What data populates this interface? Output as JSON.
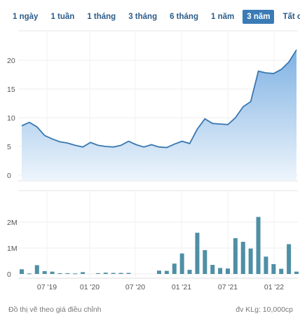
{
  "range_buttons": [
    {
      "label": "1 ngày",
      "active": false
    },
    {
      "label": "1 tuần",
      "active": false
    },
    {
      "label": "1 tháng",
      "active": false
    },
    {
      "label": "3 tháng",
      "active": false
    },
    {
      "label": "6 tháng",
      "active": false
    },
    {
      "label": "1 năm",
      "active": false
    },
    {
      "label": "3 năm",
      "active": true
    },
    {
      "label": "Tất cả",
      "active": false
    }
  ],
  "footer": {
    "note": "Đồ thị vẽ theo giá điều chỉnh",
    "unit": "đv KLg: 10,000cp"
  },
  "colors": {
    "line": "#3a78b0",
    "area_top": "#7fb2e3",
    "area_bottom": "#eef5fc",
    "bar": "#4f8fa6",
    "active_button": "#3a7bb6"
  },
  "chart_data": [
    {
      "type": "area",
      "name": "price",
      "y_ticks": [
        "0",
        "5",
        "10",
        "15",
        "20"
      ],
      "ylim": [
        0,
        23
      ],
      "x_ticks": [
        "07 '19",
        "01 '20",
        "07 '20",
        "01 '21",
        "07 '21",
        "01 '22"
      ],
      "values": [
        8.6,
        9.2,
        8.4,
        6.9,
        6.3,
        5.8,
        5.6,
        5.2,
        4.9,
        5.7,
        5.2,
        5.0,
        4.9,
        5.2,
        5.9,
        5.3,
        4.9,
        5.3,
        4.9,
        4.8,
        5.4,
        5.9,
        5.5,
        8.0,
        9.8,
        9.0,
        8.9,
        8.8,
        10.0,
        11.9,
        12.8,
        18.1,
        17.8,
        17.7,
        18.4,
        19.7,
        21.8
      ]
    },
    {
      "type": "bar",
      "name": "volume",
      "y_ticks": [
        "0",
        "1M",
        "2M"
      ],
      "ylim": [
        0,
        2500000
      ],
      "x_ticks": [
        "07 '19",
        "01 '20",
        "07 '20",
        "01 '21",
        "07 '21",
        "01 '22"
      ],
      "values": [
        180000,
        20000,
        340000,
        110000,
        90000,
        30000,
        30000,
        20000,
        70000,
        0,
        30000,
        50000,
        40000,
        40000,
        40000,
        0,
        0,
        0,
        130000,
        120000,
        400000,
        790000,
        160000,
        1590000,
        920000,
        350000,
        230000,
        210000,
        1380000,
        1240000,
        980000,
        2200000,
        670000,
        380000,
        200000,
        1150000,
        90000
      ]
    }
  ]
}
